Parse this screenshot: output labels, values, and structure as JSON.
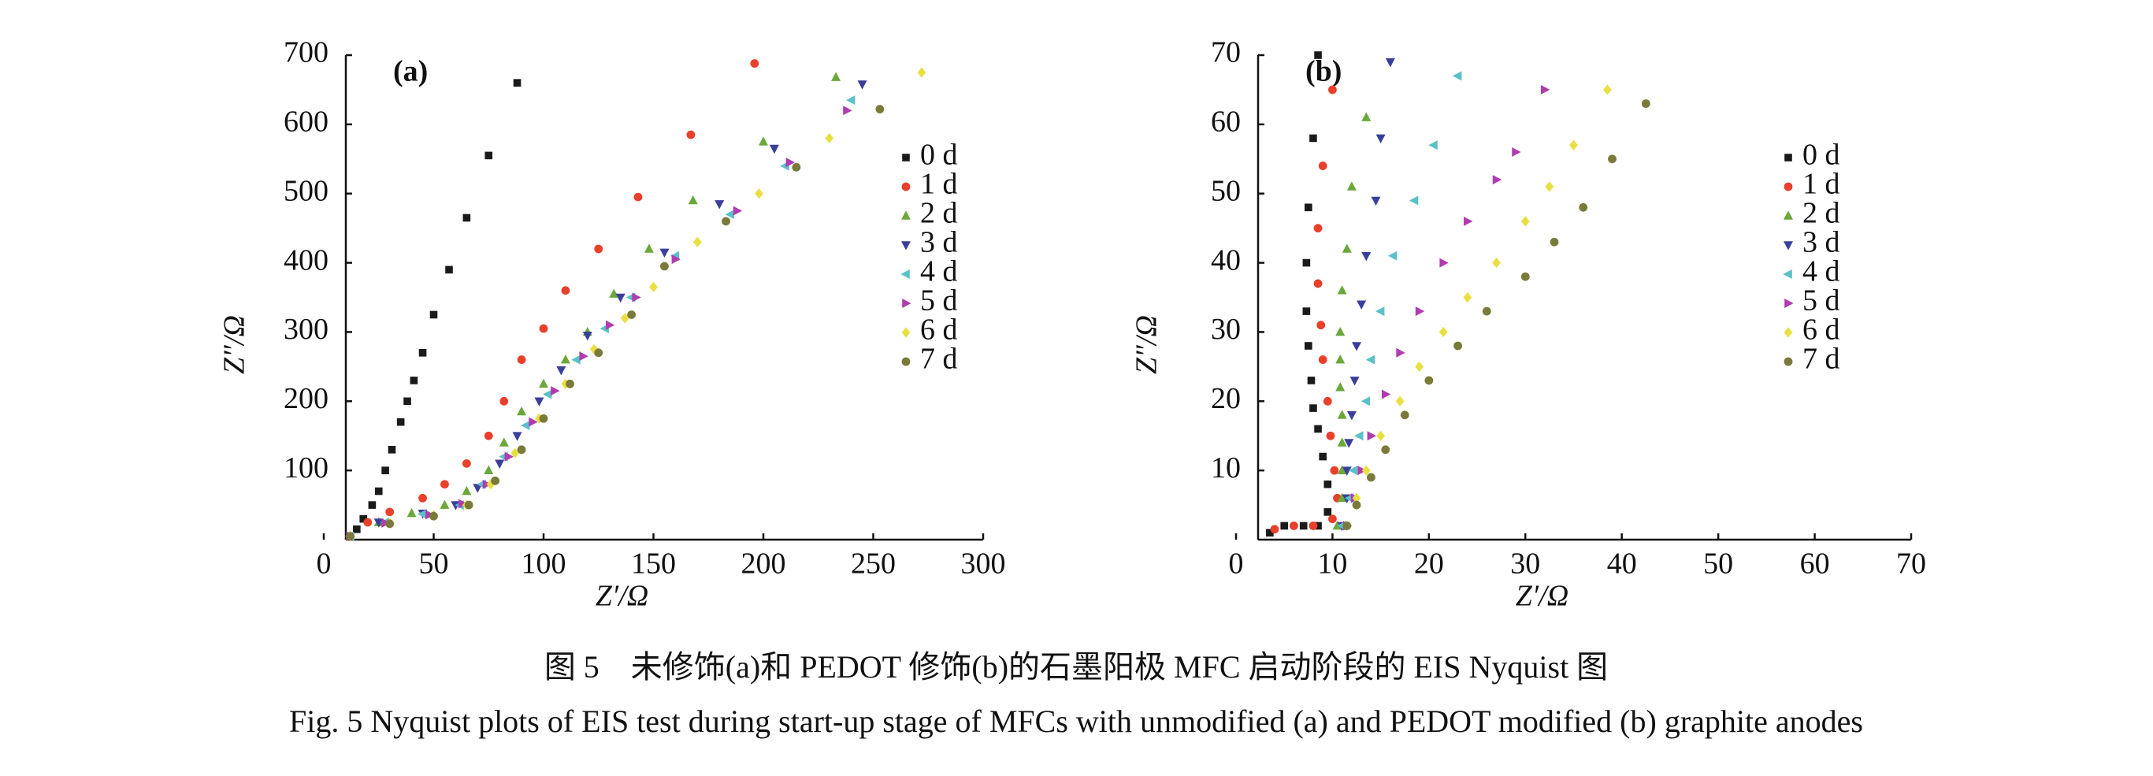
{
  "chart_data": [
    {
      "type": "scatter",
      "panel_label": "(a)",
      "x_label": "Z′/Ω",
      "y_label": "Z″/Ω",
      "xlim": [
        0,
        300
      ],
      "xticks": [
        0,
        50,
        100,
        150,
        200,
        250,
        300
      ],
      "ylim": [
        0,
        700
      ],
      "yticks": [
        100,
        200,
        300,
        400,
        500,
        600,
        700
      ],
      "series": [
        {
          "name": "0 d",
          "color": "#1a1a1a",
          "marker": "square",
          "x": [
            12,
            15,
            18,
            22,
            25,
            28,
            31,
            35,
            38,
            41,
            45,
            50,
            57,
            65,
            75,
            88
          ],
          "values": [
            5,
            15,
            30,
            50,
            70,
            100,
            130,
            170,
            200,
            230,
            270,
            325,
            390,
            465,
            555,
            660
          ]
        },
        {
          "name": "1 d",
          "color": "#e8402a",
          "marker": "circle",
          "x": [
            12,
            20,
            30,
            45,
            55,
            65,
            75,
            82,
            90,
            100,
            110,
            125,
            143,
            167,
            196
          ],
          "values": [
            5,
            25,
            40,
            60,
            80,
            110,
            150,
            200,
            260,
            305,
            360,
            420,
            495,
            585,
            688
          ]
        },
        {
          "name": "2 d",
          "color": "#6aa83a",
          "marker": "triangle-up",
          "x": [
            12,
            25,
            40,
            55,
            65,
            75,
            82,
            90,
            100,
            110,
            120,
            132,
            148,
            168,
            200,
            233
          ],
          "values": [
            5,
            25,
            38,
            50,
            70,
            100,
            140,
            185,
            225,
            260,
            300,
            355,
            420,
            490,
            575,
            668
          ]
        },
        {
          "name": "3 d",
          "color": "#3b3f9a",
          "marker": "triangle-down",
          "x": [
            12,
            25,
            45,
            60,
            70,
            80,
            88,
            98,
            108,
            120,
            135,
            155,
            180,
            205,
            245
          ],
          "values": [
            5,
            25,
            38,
            50,
            75,
            110,
            150,
            200,
            245,
            295,
            350,
            415,
            485,
            565,
            658
          ]
        },
        {
          "name": "4 d",
          "color": "#5bc0c8",
          "marker": "triangle-left",
          "x": [
            12,
            28,
            45,
            62,
            72,
            82,
            92,
            102,
            115,
            128,
            140,
            160,
            185,
            210,
            240
          ],
          "values": [
            5,
            25,
            37,
            50,
            80,
            120,
            165,
            210,
            260,
            305,
            350,
            410,
            470,
            540,
            635
          ]
        },
        {
          "name": "5 d",
          "color": "#b03cb0",
          "marker": "triangle-right",
          "x": [
            12,
            28,
            48,
            63,
            74,
            84,
            95,
            105,
            118,
            130,
            142,
            160,
            188,
            212,
            238
          ],
          "values": [
            5,
            24,
            36,
            52,
            80,
            120,
            170,
            215,
            265,
            310,
            350,
            405,
            475,
            545,
            620
          ]
        },
        {
          "name": "6 d",
          "color": "#e8e040",
          "marker": "diamond",
          "x": [
            12,
            30,
            50,
            65,
            76,
            87,
            98,
            110,
            123,
            137,
            150,
            170,
            198,
            230,
            272
          ],
          "values": [
            5,
            24,
            35,
            50,
            80,
            125,
            175,
            225,
            275,
            320,
            365,
            430,
            500,
            580,
            675
          ]
        },
        {
          "name": "7 d",
          "color": "#7a7a3a",
          "marker": "circle",
          "x": [
            12,
            30,
            50,
            66,
            78,
            90,
            100,
            112,
            125,
            140,
            155,
            183,
            215,
            253
          ],
          "values": [
            5,
            23,
            34,
            50,
            85,
            130,
            175,
            225,
            270,
            325,
            395,
            460,
            538,
            622
          ]
        }
      ]
    },
    {
      "type": "scatter",
      "panel_label": "(b)",
      "x_label": "Z′/Ω",
      "y_label": "Z″/Ω",
      "xlim": [
        0,
        70
      ],
      "xticks": [
        0,
        10,
        20,
        30,
        40,
        50,
        60,
        70
      ],
      "ylim": [
        0,
        70
      ],
      "yticks": [
        10,
        20,
        30,
        40,
        50,
        60,
        70
      ],
      "series": [
        {
          "name": "0 d",
          "color": "#1a1a1a",
          "marker": "square",
          "x": [
            3.5,
            5,
            7,
            8.5,
            9.5,
            9.5,
            9,
            8.5,
            8,
            7.8,
            7.5,
            7.3,
            7.3,
            7.5,
            8,
            8.5
          ],
          "values": [
            1,
            2,
            2,
            2,
            4,
            8,
            12,
            16,
            19,
            23,
            28,
            33,
            40,
            48,
            58,
            70
          ]
        },
        {
          "name": "1 d",
          "color": "#e8402a",
          "marker": "circle",
          "x": [
            4,
            6,
            8,
            10,
            10.5,
            10.2,
            9.8,
            9.5,
            9,
            8.8,
            8.5,
            8.5,
            9,
            10
          ],
          "values": [
            1.5,
            2,
            2,
            3,
            6,
            10,
            15,
            20,
            26,
            31,
            37,
            45,
            54,
            65
          ]
        },
        {
          "name": "2 d",
          "color": "#6aa83a",
          "marker": "triangle-up",
          "x": [
            10.5,
            11,
            11,
            11,
            11,
            10.8,
            10.8,
            10.8,
            11,
            11.5,
            12,
            13.5
          ],
          "values": [
            2,
            6,
            10,
            14,
            18,
            22,
            26,
            30,
            36,
            42,
            51,
            61
          ]
        },
        {
          "name": "3 d",
          "color": "#3b3f9a",
          "marker": "triangle-down",
          "x": [
            11,
            11.5,
            11.5,
            11.7,
            12,
            12.3,
            12.5,
            13,
            13.5,
            14.5,
            15,
            16
          ],
          "values": [
            2,
            6,
            10,
            14,
            18,
            23,
            28,
            34,
            41,
            49,
            58,
            69
          ]
        },
        {
          "name": "4 d",
          "color": "#5bc0c8",
          "marker": "triangle-left",
          "x": [
            11,
            11.8,
            12.2,
            12.8,
            13.5,
            14,
            15,
            16.3,
            18.5,
            20.5,
            23
          ],
          "values": [
            2,
            6,
            10,
            15,
            20,
            26,
            33,
            41,
            49,
            57,
            67
          ]
        },
        {
          "name": "5 d",
          "color": "#b03cb0",
          "marker": "triangle-right",
          "x": [
            11.5,
            12.3,
            13,
            14,
            15.5,
            17,
            19,
            21.5,
            24,
            27,
            29,
            32
          ],
          "values": [
            2,
            6,
            10,
            15,
            21,
            27,
            33,
            40,
            46,
            52,
            56,
            65
          ]
        },
        {
          "name": "6 d",
          "color": "#e8e040",
          "marker": "diamond",
          "x": [
            11.5,
            12.5,
            13.5,
            15,
            17,
            19,
            21.5,
            24,
            27,
            30,
            32.5,
            35,
            38.5
          ],
          "values": [
            2,
            6,
            10,
            15,
            20,
            25,
            30,
            35,
            40,
            46,
            51,
            57,
            65
          ]
        },
        {
          "name": "7 d",
          "color": "#7a7a3a",
          "marker": "circle",
          "x": [
            11.5,
            12.5,
            14,
            15.5,
            17.5,
            20,
            23,
            26,
            30,
            33,
            36,
            39,
            42.5
          ],
          "values": [
            2,
            5,
            9,
            13,
            18,
            23,
            28,
            33,
            38,
            43,
            48,
            55,
            63
          ]
        }
      ]
    }
  ],
  "caption": {
    "zh": "图 5　未修饰(a)和 PEDOT 修饰(b)的石墨阳极 MFC 启动阶段的 EIS Nyquist 图",
    "en": "Fig. 5  Nyquist plots of EIS test during start-up stage of MFCs with unmodified (a) and PEDOT modified (b) graphite anodes"
  }
}
